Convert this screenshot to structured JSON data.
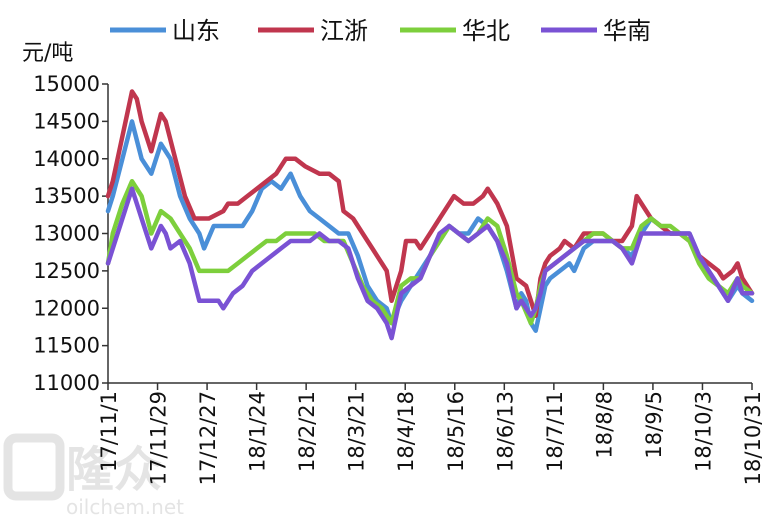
{
  "chart_data": {
    "type": "line",
    "title": "",
    "ylabel": "元/吨",
    "xlabel": "",
    "ylim": [
      11000,
      15000
    ],
    "yticks": [
      11000,
      11500,
      12000,
      12500,
      13000,
      13500,
      14000,
      14500,
      15000
    ],
    "xticks": [
      "17/11/1",
      "17/11/29",
      "17/12/27",
      "18/1/24",
      "18/2/21",
      "18/3/21",
      "18/4/18",
      "18/5/16",
      "18/6/13",
      "18/7/11",
      "18/8/8",
      "18/9/5",
      "18/10/3",
      "18/10/31"
    ],
    "legend_position": "top",
    "series": [
      {
        "name": "山东",
        "color": "#4a8fd8",
        "values": [
          [
            0,
            13300
          ],
          [
            1,
            13500
          ],
          [
            3,
            14000
          ],
          [
            5,
            14500
          ],
          [
            7,
            14000
          ],
          [
            9,
            13800
          ],
          [
            11,
            14200
          ],
          [
            13,
            14000
          ],
          [
            15,
            13500
          ],
          [
            17,
            13200
          ],
          [
            19,
            13000
          ],
          [
            20,
            12800
          ],
          [
            22,
            13100
          ],
          [
            28,
            13100
          ],
          [
            30,
            13300
          ],
          [
            32,
            13600
          ],
          [
            34,
            13700
          ],
          [
            36,
            13600
          ],
          [
            38,
            13800
          ],
          [
            40,
            13500
          ],
          [
            42,
            13300
          ],
          [
            44,
            13200
          ],
          [
            46,
            13100
          ],
          [
            48,
            13000
          ],
          [
            50,
            13000
          ],
          [
            52,
            12700
          ],
          [
            54,
            12300
          ],
          [
            56,
            12100
          ],
          [
            58,
            12000
          ],
          [
            59,
            11800
          ],
          [
            61,
            12100
          ],
          [
            63,
            12300
          ],
          [
            65,
            12500
          ],
          [
            67,
            12700
          ],
          [
            69,
            12900
          ],
          [
            71,
            13100
          ],
          [
            73,
            13000
          ],
          [
            75,
            13000
          ],
          [
            77,
            13200
          ],
          [
            79,
            13100
          ],
          [
            81,
            12900
          ],
          [
            83,
            12500
          ],
          [
            85,
            12000
          ],
          [
            86,
            12200
          ],
          [
            87,
            12100
          ],
          [
            88,
            11800
          ],
          [
            89,
            11700
          ],
          [
            90,
            12000
          ],
          [
            91,
            12300
          ],
          [
            92,
            12400
          ],
          [
            94,
            12500
          ],
          [
            96,
            12600
          ],
          [
            97,
            12500
          ],
          [
            99,
            12800
          ],
          [
            101,
            12900
          ],
          [
            103,
            12900
          ],
          [
            105,
            12900
          ],
          [
            107,
            12800
          ],
          [
            109,
            12700
          ],
          [
            111,
            13000
          ],
          [
            113,
            13200
          ],
          [
            115,
            13100
          ],
          [
            117,
            13000
          ],
          [
            119,
            13000
          ],
          [
            121,
            13000
          ],
          [
            123,
            12700
          ],
          [
            125,
            12500
          ],
          [
            127,
            12300
          ],
          [
            129,
            12100
          ],
          [
            131,
            12300
          ],
          [
            132,
            12200
          ],
          [
            134,
            12100
          ]
        ]
      },
      {
        "name": "江浙",
        "color": "#c0364e",
        "values": [
          [
            0,
            13500
          ],
          [
            1,
            13700
          ],
          [
            3,
            14300
          ],
          [
            5,
            14900
          ],
          [
            6,
            14800
          ],
          [
            7,
            14500
          ],
          [
            9,
            14100
          ],
          [
            11,
            14600
          ],
          [
            12,
            14500
          ],
          [
            14,
            14000
          ],
          [
            16,
            13500
          ],
          [
            18,
            13200
          ],
          [
            21,
            13200
          ],
          [
            24,
            13300
          ],
          [
            25,
            13400
          ],
          [
            27,
            13400
          ],
          [
            29,
            13500
          ],
          [
            31,
            13600
          ],
          [
            33,
            13700
          ],
          [
            35,
            13800
          ],
          [
            37,
            14000
          ],
          [
            39,
            14000
          ],
          [
            41,
            13900
          ],
          [
            44,
            13800
          ],
          [
            46,
            13800
          ],
          [
            48,
            13700
          ],
          [
            49,
            13300
          ],
          [
            51,
            13200
          ],
          [
            53,
            13000
          ],
          [
            55,
            12800
          ],
          [
            57,
            12600
          ],
          [
            58,
            12500
          ],
          [
            59,
            12100
          ],
          [
            60,
            12300
          ],
          [
            61,
            12500
          ],
          [
            62,
            12900
          ],
          [
            64,
            12900
          ],
          [
            65,
            12800
          ],
          [
            67,
            13000
          ],
          [
            69,
            13200
          ],
          [
            71,
            13400
          ],
          [
            72,
            13500
          ],
          [
            74,
            13400
          ],
          [
            76,
            13400
          ],
          [
            78,
            13500
          ],
          [
            79,
            13600
          ],
          [
            81,
            13400
          ],
          [
            83,
            13100
          ],
          [
            85,
            12400
          ],
          [
            87,
            12300
          ],
          [
            89,
            11900
          ],
          [
            90,
            12400
          ],
          [
            91,
            12600
          ],
          [
            92,
            12700
          ],
          [
            94,
            12800
          ],
          [
            95,
            12900
          ],
          [
            97,
            12800
          ],
          [
            99,
            13000
          ],
          [
            101,
            13000
          ],
          [
            103,
            13000
          ],
          [
            105,
            12900
          ],
          [
            107,
            12900
          ],
          [
            109,
            13100
          ],
          [
            110,
            13500
          ],
          [
            111,
            13400
          ],
          [
            113,
            13200
          ],
          [
            115,
            13100
          ],
          [
            117,
            13000
          ],
          [
            119,
            13000
          ],
          [
            121,
            12900
          ],
          [
            123,
            12700
          ],
          [
            125,
            12600
          ],
          [
            127,
            12500
          ],
          [
            128,
            12400
          ],
          [
            130,
            12500
          ],
          [
            131,
            12600
          ],
          [
            132,
            12400
          ],
          [
            134,
            12200
          ]
        ]
      },
      {
        "name": "华北",
        "color": "#7dcf3c",
        "values": [
          [
            0,
            12600
          ],
          [
            1,
            13000
          ],
          [
            3,
            13400
          ],
          [
            5,
            13700
          ],
          [
            7,
            13500
          ],
          [
            9,
            13000
          ],
          [
            11,
            13300
          ],
          [
            13,
            13200
          ],
          [
            15,
            13000
          ],
          [
            17,
            12800
          ],
          [
            19,
            12500
          ],
          [
            21,
            12500
          ],
          [
            23,
            12500
          ],
          [
            25,
            12500
          ],
          [
            27,
            12600
          ],
          [
            29,
            12700
          ],
          [
            31,
            12800
          ],
          [
            33,
            12900
          ],
          [
            35,
            12900
          ],
          [
            37,
            13000
          ],
          [
            39,
            13000
          ],
          [
            41,
            13000
          ],
          [
            43,
            13000
          ],
          [
            45,
            12900
          ],
          [
            47,
            12900
          ],
          [
            49,
            12900
          ],
          [
            51,
            12600
          ],
          [
            53,
            12300
          ],
          [
            55,
            12100
          ],
          [
            57,
            12000
          ],
          [
            59,
            11800
          ],
          [
            61,
            12300
          ],
          [
            63,
            12400
          ],
          [
            65,
            12400
          ],
          [
            67,
            12700
          ],
          [
            69,
            12900
          ],
          [
            71,
            13100
          ],
          [
            73,
            13000
          ],
          [
            75,
            12900
          ],
          [
            77,
            13000
          ],
          [
            79,
            13200
          ],
          [
            81,
            13100
          ],
          [
            83,
            12700
          ],
          [
            85,
            12200
          ],
          [
            86,
            12100
          ],
          [
            88,
            11800
          ],
          [
            89,
            12000
          ],
          [
            90,
            12300
          ],
          [
            91,
            12500
          ],
          [
            93,
            12600
          ],
          [
            95,
            12700
          ],
          [
            97,
            12800
          ],
          [
            99,
            12900
          ],
          [
            101,
            13000
          ],
          [
            103,
            13000
          ],
          [
            105,
            12900
          ],
          [
            107,
            12800
          ],
          [
            109,
            12800
          ],
          [
            111,
            13100
          ],
          [
            113,
            13200
          ],
          [
            115,
            13100
          ],
          [
            117,
            13100
          ],
          [
            119,
            13000
          ],
          [
            121,
            12900
          ],
          [
            123,
            12600
          ],
          [
            125,
            12400
          ],
          [
            127,
            12300
          ],
          [
            129,
            12200
          ],
          [
            131,
            12400
          ],
          [
            132,
            12300
          ],
          [
            134,
            12200
          ]
        ]
      },
      {
        "name": "华南",
        "color": "#7a52d4",
        "values": [
          [
            0,
            12600
          ],
          [
            1,
            12800
          ],
          [
            3,
            13200
          ],
          [
            5,
            13600
          ],
          [
            6,
            13400
          ],
          [
            7,
            13200
          ],
          [
            9,
            12800
          ],
          [
            11,
            13100
          ],
          [
            12,
            13000
          ],
          [
            13,
            12800
          ],
          [
            15,
            12900
          ],
          [
            17,
            12600
          ],
          [
            19,
            12100
          ],
          [
            21,
            12100
          ],
          [
            23,
            12100
          ],
          [
            24,
            12000
          ],
          [
            26,
            12200
          ],
          [
            28,
            12300
          ],
          [
            30,
            12500
          ],
          [
            32,
            12600
          ],
          [
            34,
            12700
          ],
          [
            36,
            12800
          ],
          [
            38,
            12900
          ],
          [
            40,
            12900
          ],
          [
            42,
            12900
          ],
          [
            44,
            13000
          ],
          [
            46,
            12900
          ],
          [
            48,
            12900
          ],
          [
            50,
            12800
          ],
          [
            52,
            12400
          ],
          [
            54,
            12100
          ],
          [
            56,
            12000
          ],
          [
            58,
            11800
          ],
          [
            59,
            11600
          ],
          [
            61,
            12200
          ],
          [
            63,
            12300
          ],
          [
            65,
            12400
          ],
          [
            67,
            12700
          ],
          [
            69,
            13000
          ],
          [
            71,
            13100
          ],
          [
            73,
            13000
          ],
          [
            75,
            12900
          ],
          [
            77,
            13000
          ],
          [
            79,
            13100
          ],
          [
            81,
            12900
          ],
          [
            83,
            12600
          ],
          [
            85,
            12000
          ],
          [
            86,
            12100
          ],
          [
            88,
            11900
          ],
          [
            89,
            12000
          ],
          [
            90,
            12200
          ],
          [
            91,
            12500
          ],
          [
            93,
            12600
          ],
          [
            95,
            12700
          ],
          [
            97,
            12800
          ],
          [
            99,
            12900
          ],
          [
            101,
            12900
          ],
          [
            103,
            12900
          ],
          [
            105,
            12900
          ],
          [
            107,
            12800
          ],
          [
            109,
            12600
          ],
          [
            111,
            13000
          ],
          [
            113,
            13000
          ],
          [
            115,
            13000
          ],
          [
            117,
            13000
          ],
          [
            119,
            13000
          ],
          [
            121,
            13000
          ],
          [
            123,
            12700
          ],
          [
            125,
            12500
          ],
          [
            127,
            12300
          ],
          [
            129,
            12100
          ],
          [
            131,
            12400
          ],
          [
            132,
            12200
          ],
          [
            134,
            12200
          ]
        ]
      }
    ],
    "watermark": {
      "text": "隆众",
      "subtext": "oilchem.net"
    }
  }
}
